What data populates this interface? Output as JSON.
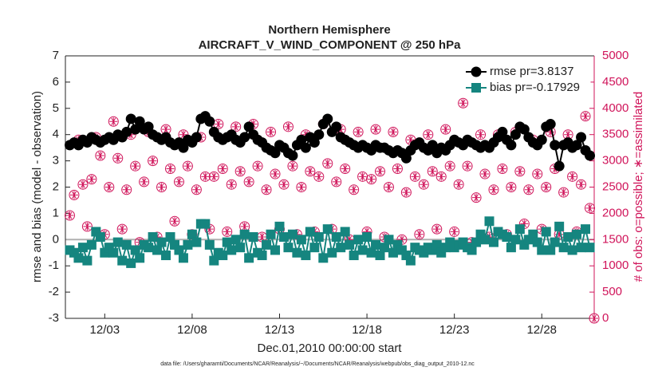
{
  "chart_data": {
    "type": "line",
    "title": "Northern Hemisphere",
    "subtitle": "AIRCRAFT_V_WIND_COMPONENT @ 250 hPa",
    "xlabel": "Dec.01,2010 00:00:00 start",
    "ylabel": "rmse and bias (model - observation)",
    "y2label": "# of obs: o=possible; ∗=assimilated",
    "footnote": "data file: /Users/gharamti/Documents/NCAR/Reanalysis/~/Documents/NCAR/Reanalysis/webpub/obs_diag_output_2010-12.nc",
    "legend": "upper right",
    "xlim": [
      -0.25,
      30
    ],
    "xticks": [
      {
        "value": 2,
        "label": "12/03"
      },
      {
        "value": 7,
        "label": "12/08"
      },
      {
        "value": 12,
        "label": "12/13"
      },
      {
        "value": 17,
        "label": "12/18"
      },
      {
        "value": 22,
        "label": "12/23"
      },
      {
        "value": 27,
        "label": "12/28"
      }
    ],
    "ylim": [
      -3,
      7
    ],
    "yticks": [
      -3,
      -2,
      -1,
      0,
      1,
      2,
      3,
      4,
      5,
      6,
      7
    ],
    "y2lim": [
      0,
      5000
    ],
    "y2ticks": [
      0,
      500,
      1000,
      1500,
      2000,
      2500,
      3000,
      3500,
      4000,
      4500,
      5000
    ],
    "x": [
      0,
      0.25,
      0.5,
      0.75,
      1,
      1.25,
      1.5,
      1.75,
      2,
      2.25,
      2.5,
      2.75,
      3,
      3.25,
      3.5,
      3.75,
      4,
      4.25,
      4.5,
      4.75,
      5,
      5.25,
      5.5,
      5.75,
      6,
      6.25,
      6.5,
      6.75,
      7,
      7.25,
      7.5,
      7.75,
      8,
      8.25,
      8.5,
      8.75,
      9,
      9.25,
      9.5,
      9.75,
      10,
      10.25,
      10.5,
      10.75,
      11,
      11.25,
      11.5,
      11.75,
      12,
      12.25,
      12.5,
      12.75,
      13,
      13.25,
      13.5,
      13.75,
      14,
      14.25,
      14.5,
      14.75,
      15,
      15.25,
      15.5,
      15.75,
      16,
      16.25,
      16.5,
      16.75,
      17,
      17.25,
      17.5,
      17.75,
      18,
      18.25,
      18.5,
      18.75,
      19,
      19.25,
      19.5,
      19.75,
      20,
      20.25,
      20.5,
      20.75,
      21,
      21.25,
      21.5,
      21.75,
      22,
      22.25,
      22.5,
      22.75,
      23,
      23.25,
      23.5,
      23.75,
      24,
      24.25,
      24.5,
      24.75,
      25,
      25.25,
      25.5,
      25.75,
      26,
      26.25,
      26.5,
      26.75,
      27,
      27.25,
      27.5,
      27.75,
      28,
      28.25,
      28.5,
      28.75,
      29,
      29.25,
      29.5,
      29.75,
      30
    ],
    "series": [
      {
        "name": "rmse pr=3.8137",
        "color": "#000000",
        "marker": "circle",
        "axis": "y",
        "values": [
          3.6,
          3.7,
          3.6,
          3.8,
          3.7,
          3.9,
          3.8,
          3.7,
          3.8,
          3.9,
          3.8,
          4.0,
          3.9,
          4.1,
          4.6,
          4.2,
          4.5,
          4.2,
          4.3,
          4.0,
          3.9,
          3.8,
          3.9,
          3.7,
          3.6,
          3.7,
          3.5,
          3.8,
          3.7,
          3.9,
          4.6,
          4.7,
          4.5,
          4.1,
          3.9,
          3.8,
          3.9,
          4.0,
          3.8,
          3.7,
          3.9,
          4.3,
          4.0,
          3.8,
          3.7,
          3.5,
          3.4,
          3.3,
          3.6,
          3.5,
          3.3,
          3.2,
          3.6,
          3.8,
          3.5,
          3.9,
          3.7,
          4.0,
          4.4,
          4.6,
          4.1,
          4.3,
          3.9,
          3.8,
          3.7,
          3.6,
          3.5,
          3.6,
          3.5,
          3.4,
          3.6,
          3.5,
          3.5,
          3.4,
          3.3,
          3.4,
          3.3,
          3.1,
          3.4,
          3.6,
          3.7,
          3.5,
          3.4,
          3.6,
          3.3,
          3.5,
          3.4,
          3.6,
          3.8,
          3.7,
          3.6,
          3.8,
          3.7,
          3.6,
          3.5,
          3.6,
          3.5,
          3.7,
          3.9,
          4.1,
          3.8,
          3.6,
          4.0,
          4.3,
          4.2,
          3.9,
          3.7,
          3.6,
          3.8,
          4.3,
          4.4,
          3.6,
          2.8,
          3.6,
          3.7,
          3.5,
          3.6,
          3.9,
          3.4,
          3.2,
          null
        ]
      },
      {
        "name": "bias pr=-0.17929",
        "color": "#15857f",
        "marker": "square",
        "axis": "y",
        "values": [
          -0.4,
          -0.5,
          -0.7,
          -0.3,
          -0.8,
          -0.2,
          0.3,
          0.1,
          -0.5,
          -0.3,
          -0.5,
          -0.1,
          -0.8,
          -0.2,
          -0.9,
          -0.4,
          -0.7,
          -0.2,
          -0.3,
          0.1,
          -0.4,
          -0.1,
          -0.6,
          0.1,
          -0.2,
          -0.4,
          -0.7,
          -0.2,
          0.2,
          -0.1,
          0.6,
          0.6,
          -0.2,
          -0.8,
          -0.5,
          -0.6,
          -0.1,
          -0.4,
          0.0,
          -0.3,
          0.2,
          -0.7,
          0.1,
          -0.5,
          -0.6,
          -0.2,
          0.2,
          -0.4,
          0.5,
          0.1,
          -0.3,
          0.2,
          -0.5,
          0.0,
          -0.6,
          0.3,
          -0.3,
          0.1,
          -0.7,
          0.4,
          -0.5,
          0.1,
          -0.3,
          0.3,
          -0.2,
          -0.6,
          0.0,
          -0.4,
          0.1,
          -0.5,
          -0.2,
          -0.6,
          -0.3,
          0.0,
          -0.5,
          -0.2,
          -0.4,
          -0.6,
          -0.8,
          -0.3,
          -0.4,
          -0.5,
          -0.3,
          -0.4,
          -0.2,
          -0.5,
          -0.3,
          -0.1,
          -0.3,
          -0.2,
          -0.1,
          -0.3,
          -0.4,
          -0.1,
          0.2,
          0.0,
          0.7,
          -0.1,
          0.3,
          0.2,
          0.1,
          -0.3,
          0.0,
          0.4,
          -0.2,
          0.0,
          0.2,
          -0.1,
          -0.4,
          0.3,
          -0.4,
          -0.1,
          0.5,
          -0.3,
          0.1,
          -0.4,
          0.2,
          -0.3,
          0.4,
          -0.3,
          null
        ]
      },
      {
        "name": "possible",
        "color": "#d0145a",
        "marker": "open-circle",
        "axis": "y2",
        "values": [
          1960,
          2350,
          3400,
          2550,
          1750,
          2650,
          3450,
          3100,
          1600,
          2500,
          3750,
          3050,
          1700,
          2450,
          3500,
          2900,
          1450,
          2600,
          3550,
          3000,
          1550,
          2500,
          3600,
          2850,
          1850,
          2600,
          3500,
          2900,
          1600,
          2450,
          3450,
          2700,
          1700,
          2700,
          3700,
          2850,
          1650,
          2550,
          3650,
          2800,
          1750,
          2600,
          3700,
          2900,
          1550,
          2450,
          3550,
          2750,
          1700,
          2550,
          3650,
          2900,
          1600,
          2500,
          3500,
          2800,
          1650,
          2700,
          3700,
          2950,
          1700,
          2600,
          3600,
          2850,
          1500,
          2450,
          3550,
          2700,
          1650,
          2650,
          3600,
          2800,
          1550,
          2500,
          3550,
          2850,
          1500,
          2400,
          3400,
          2700,
          1600,
          2550,
          3500,
          2800,
          1700,
          2700,
          3600,
          2900,
          1650,
          2550,
          4100,
          2900,
          1450,
          2300,
          3500,
          2750,
          1550,
          2450,
          3500,
          2850,
          1600,
          2500,
          3550,
          2800,
          1800,
          2450,
          3400,
          2750,
          1700,
          2500,
          3550,
          2850,
          1600,
          2400,
          3500,
          2700,
          1650,
          2550,
          3850,
          2100,
          0
        ]
      },
      {
        "name": "assimilated",
        "color": "#d0145a",
        "marker": "asterisk",
        "axis": "y2",
        "values": [
          1960,
          2350,
          3400,
          2550,
          1750,
          2650,
          3450,
          3100,
          1600,
          2500,
          3750,
          3050,
          1700,
          2450,
          3500,
          2900,
          1450,
          2600,
          3550,
          3000,
          1550,
          2500,
          3600,
          2850,
          1850,
          2600,
          3500,
          2900,
          1600,
          2450,
          3450,
          2700,
          1700,
          2700,
          3700,
          2850,
          1650,
          2550,
          3650,
          2800,
          1750,
          2600,
          3700,
          2900,
          1550,
          2450,
          3550,
          2750,
          1700,
          2550,
          3650,
          2900,
          1600,
          2500,
          3500,
          2800,
          1650,
          2700,
          3700,
          2950,
          1700,
          2600,
          3600,
          2850,
          1500,
          2450,
          3550,
          2700,
          1650,
          2650,
          3600,
          2800,
          1550,
          2500,
          3550,
          2850,
          1500,
          2400,
          3400,
          2700,
          1600,
          2550,
          3500,
          2800,
          1700,
          2700,
          3600,
          2900,
          1650,
          2550,
          4100,
          2900,
          1450,
          2300,
          3500,
          2750,
          1550,
          2450,
          3500,
          2850,
          1600,
          2500,
          3550,
          2800,
          1800,
          2450,
          3400,
          2750,
          1700,
          2500,
          3550,
          2850,
          1600,
          2400,
          3500,
          2700,
          1650,
          2550,
          3850,
          2100,
          0
        ]
      }
    ]
  }
}
